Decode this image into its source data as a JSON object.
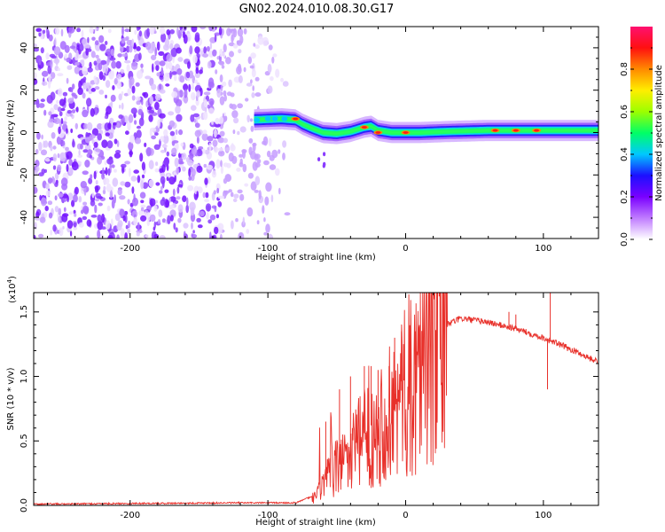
{
  "figure": {
    "title": "GN02.2024.010.08.30.G17"
  },
  "chart_data": [
    {
      "type": "heatmap",
      "title": "GN02.2024.010.08.30.G17",
      "xlabel": "Height of straight line (km)",
      "ylabel": "Frequency (Hz)",
      "xlim": [
        -270,
        140
      ],
      "ylim": [
        -50,
        50
      ],
      "x_ticks": [
        -200,
        -100,
        0,
        100
      ],
      "x_tick_labels": [
        "-200",
        "-100",
        "0",
        "100"
      ],
      "y_ticks": [
        -40,
        -20,
        0,
        20,
        40
      ],
      "y_tick_labels": [
        "-40",
        "-20",
        "0",
        "20",
        "40"
      ],
      "noise_region_x": [
        -270,
        -85
      ],
      "ridge": [
        [
          -110,
          6
        ],
        [
          -90,
          6.5
        ],
        [
          -80,
          6
        ],
        [
          -75,
          4
        ],
        [
          -68,
          2
        ],
        [
          -60,
          0
        ],
        [
          -50,
          -0.5
        ],
        [
          -40,
          0.5
        ],
        [
          -30,
          2.5
        ],
        [
          -25,
          3
        ],
        [
          -20,
          1
        ],
        [
          -10,
          0
        ],
        [
          0,
          0
        ],
        [
          10,
          0
        ],
        [
          30,
          0.5
        ],
        [
          60,
          1
        ],
        [
          100,
          1
        ],
        [
          140,
          1
        ]
      ],
      "hot_spots": [
        [
          -80,
          6.5
        ],
        [
          -30,
          2.5
        ],
        [
          -20,
          0
        ],
        [
          0,
          0
        ],
        [
          65,
          1
        ],
        [
          80,
          1
        ],
        [
          95,
          1
        ]
      ],
      "colorbar": {
        "label": "Normalized spectral amplitude",
        "range": [
          0,
          1
        ],
        "ticks": [
          0.0,
          0.2,
          0.4,
          0.6,
          0.8
        ],
        "tick_labels": [
          "0.0",
          "0.2",
          "0.4",
          "0.6",
          "0.8"
        ],
        "colors": [
          "#ffffff",
          "#c07cff",
          "#7a00ff",
          "#1c10ff",
          "#00c8ff",
          "#00ff66",
          "#9cff00",
          "#ffee00",
          "#ff8a00",
          "#ff1010",
          "#ff1070"
        ]
      }
    },
    {
      "type": "line",
      "xlabel": "Height of straight line (km)",
      "ylabel": "SNR (10 * v/v)",
      "y_multiplier_label": "(x10",
      "y_multiplier_exp": "4",
      "y_multiplier_close": ")",
      "xlim": [
        -270,
        140
      ],
      "ylim": [
        0,
        1.65
      ],
      "x_ticks": [
        -200,
        -100,
        0,
        100
      ],
      "x_tick_labels": [
        "-200",
        "-100",
        "0",
        "100"
      ],
      "y_ticks": [
        0.0,
        0.5,
        1.0,
        1.5
      ],
      "y_tick_labels": [
        "0.0",
        "0.5",
        "1.0",
        "1.5"
      ],
      "line_color": "#e8302a",
      "envelope": {
        "x": [
          -270,
          -200,
          -120,
          -80,
          -65,
          -55,
          -45,
          -35,
          -25,
          -15,
          -5,
          5,
          15,
          25,
          40,
          60,
          80,
          100,
          120,
          140
        ],
        "y": [
          0.01,
          0.015,
          0.02,
          0.02,
          0.08,
          0.25,
          0.38,
          0.5,
          0.62,
          0.72,
          0.85,
          1.05,
          1.25,
          1.38,
          1.45,
          1.42,
          1.37,
          1.3,
          1.21,
          1.11
        ]
      },
      "spikes": [
        [
          -58,
          0.65
        ],
        [
          -48,
          0.9
        ],
        [
          -40,
          1.0
        ],
        [
          -30,
          1.08
        ],
        [
          -25,
          1.08
        ],
        [
          -20,
          1.05
        ],
        [
          -12,
          1.08
        ],
        [
          -8,
          1.3
        ],
        [
          -3,
          1.35
        ],
        [
          7,
          1.35
        ],
        [
          75,
          1.5
        ],
        [
          80,
          1.48
        ],
        [
          105,
          1.65
        ],
        [
          103,
          0.9
        ]
      ]
    }
  ]
}
